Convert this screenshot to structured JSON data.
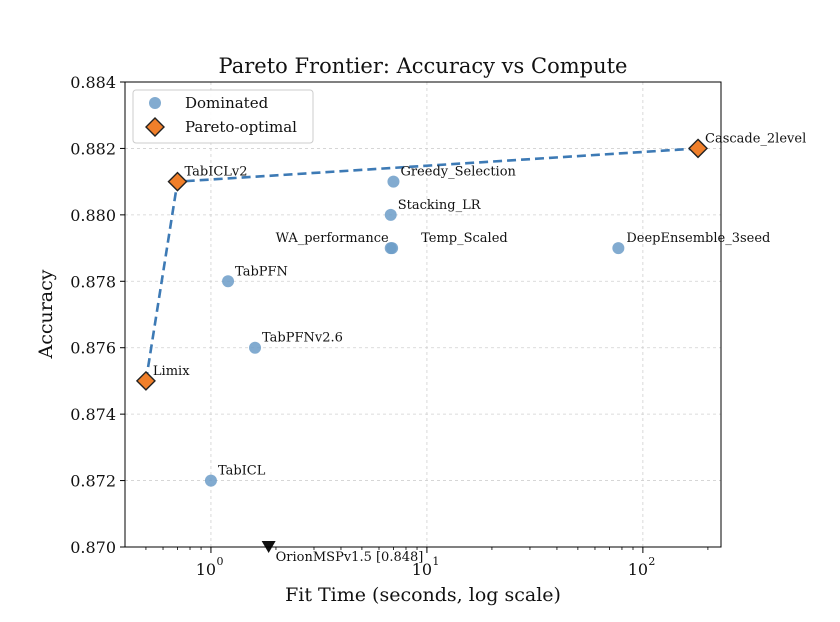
{
  "chart_data": {
    "type": "scatter",
    "title": "Pareto Frontier: Accuracy vs Compute",
    "xlabel": "Fit Time (seconds, log scale)",
    "ylabel": "Accuracy",
    "x_scale": "log",
    "xlim": [
      0.4,
      230
    ],
    "ylim": [
      0.87,
      0.884
    ],
    "y_ticks": [
      "0.870",
      "0.872",
      "0.874",
      "0.876",
      "0.878",
      "0.880",
      "0.882",
      "0.884"
    ],
    "x_ticks": [
      {
        "value": 1,
        "base": "10",
        "exp": "0"
      },
      {
        "value": 10,
        "base": "10",
        "exp": "1"
      },
      {
        "value": 100,
        "base": "10",
        "exp": "2"
      }
    ],
    "grid": true,
    "legend_position": "top-left",
    "legend": [
      {
        "label": "Dominated",
        "marker": "circle"
      },
      {
        "label": "Pareto-optimal",
        "marker": "diamond"
      }
    ],
    "colors": {
      "dominated": "#6c9cc8",
      "pareto_fill": "#f07f2a",
      "pareto_edge": "#222222",
      "frontier_line": "#3d7ab5",
      "offscale_marker": "#111111"
    },
    "series": [
      {
        "name": "Dominated",
        "points": [
          {
            "label": "TabICL",
            "x": 1.0,
            "y": 0.872
          },
          {
            "label": "TabPFN",
            "x": 1.2,
            "y": 0.878
          },
          {
            "label": "TabPFNv2.6",
            "x": 1.6,
            "y": 0.876
          },
          {
            "label": "Greedy_Selection",
            "x": 7.0,
            "y": 0.881
          },
          {
            "label": "Stacking_LR",
            "x": 6.8,
            "y": 0.88
          },
          {
            "label": "WA_performance",
            "x": 6.8,
            "y": 0.879
          },
          {
            "label": "Temp_Scaled",
            "x": 6.9,
            "y": 0.879
          },
          {
            "label": "DeepEnsemble_3seed",
            "x": 77,
            "y": 0.879
          }
        ]
      },
      {
        "name": "Pareto-optimal",
        "points": [
          {
            "label": "Limix",
            "x": 0.5,
            "y": 0.875
          },
          {
            "label": "TabICLv2",
            "x": 0.7,
            "y": 0.881
          },
          {
            "label": "Cascade_2level",
            "x": 180,
            "y": 0.882
          }
        ]
      }
    ],
    "frontier_line_points": [
      {
        "x": 0.5,
        "y": 0.875
      },
      {
        "x": 0.7,
        "y": 0.881
      },
      {
        "x": 180,
        "y": 0.882
      }
    ],
    "annotations": [
      {
        "text": "OrionMSPv1.5 [0.848]",
        "x": 1.85,
        "y": 0.87,
        "marker": "triangle-down"
      }
    ]
  }
}
